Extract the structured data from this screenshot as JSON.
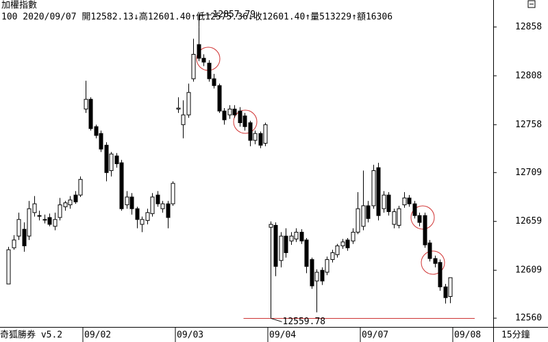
{
  "chart_data": {
    "type": "candlestick",
    "title": "加權指數",
    "info": "100 2020/09/07 開12582.13↓高12601.40↑低12575.36↓收12601.40↑量513229↑額16306",
    "footer": "奇狐勝券 v5.2",
    "period": "15分鐘",
    "ylim": [
      12551,
      12873
    ],
    "yticks": [
      12858,
      12808,
      12758,
      12709,
      12659,
      12609,
      12560
    ],
    "up_color": "#ffffff",
    "down_color": "#000000",
    "mark_color": "#cc3333",
    "categories": [
      null,
      null,
      null,
      null,
      null,
      null,
      null,
      null,
      null,
      null,
      null,
      null,
      null,
      null,
      null,
      "09/02",
      null,
      null,
      null,
      null,
      null,
      null,
      null,
      null,
      null,
      null,
      null,
      null,
      null,
      null,
      null,
      null,
      null,
      "09/03",
      null,
      null,
      null,
      null,
      null,
      null,
      null,
      null,
      null,
      null,
      null,
      null,
      null,
      null,
      null,
      null,
      null,
      "09/04",
      null,
      null,
      null,
      null,
      null,
      null,
      null,
      null,
      null,
      null,
      null,
      null,
      null,
      null,
      null,
      null,
      null,
      "09/07",
      null,
      null,
      null,
      null,
      null,
      null,
      null,
      null,
      null,
      null,
      null,
      null,
      null,
      null,
      null,
      null,
      null,
      "09/08"
    ],
    "open": [
      12595,
      12632,
      12644,
      12651,
      12644,
      12668,
      12665,
      12661,
      12663,
      12654,
      12663,
      12674,
      12676,
      12686,
      12686,
      12774,
      12784,
      12756,
      12749,
      12737,
      12711,
      12726,
      12719,
      12676,
      12684,
      12672,
      12656,
      12660,
      12667,
      12686,
      12672,
      12677,
      12677,
      12774,
      12758,
      12768,
      12805,
      12840,
      12826,
      12821,
      12805,
      12798,
      12772,
      12768,
      12774,
      12772,
      12767,
      12760,
      12742,
      12749,
      12739,
      12653,
      12655,
      12619,
      12644,
      12639,
      12641,
      12648,
      12640,
      12620,
      12598,
      12609,
      12607,
      12620,
      12625,
      12634,
      12640,
      12639,
      12648,
      12654,
      12675,
      12675,
      12714,
      12672,
      12686,
      12656,
      12655,
      12676,
      12683,
      12677,
      12665,
      12665,
      12637,
      12621,
      12617,
      12592,
      12582.13,
      null
    ],
    "high": [
      12633,
      12645,
      12668,
      12658,
      12680,
      12685,
      12670,
      12666,
      12667,
      12668,
      12683,
      12680,
      12685,
      12690,
      12705,
      12803,
      12786,
      12758,
      12752,
      12740,
      12730,
      12729,
      12722,
      12690,
      12688,
      12674,
      12664,
      12672,
      12688,
      12690,
      12680,
      12680,
      12700,
      12786,
      12783,
      12800,
      12846,
      12857.79,
      12830,
      12824,
      12810,
      12800,
      12775,
      12778,
      12778,
      12776,
      12770,
      12762,
      12752,
      12751,
      12760,
      12659,
      12658,
      12648,
      12652,
      12648,
      12652,
      12651,
      12642,
      12622,
      12610,
      12612,
      12623,
      12630,
      12636,
      12641,
      12642,
      12652,
      12689,
      12711,
      12680,
      12717,
      12719,
      12690,
      12689,
      12672,
      12675,
      12689,
      12686,
      12680,
      12668,
      12668,
      12640,
      12624,
      12620,
      12595,
      12601.4,
      null
    ],
    "low": [
      12595,
      12630,
      12640,
      12628,
      12640,
      12664,
      12660,
      12657,
      12654,
      12650,
      12660,
      12670,
      12672,
      12677,
      12684,
      12770,
      12752,
      12744,
      12730,
      12700,
      12705,
      12714,
      12670,
      12672,
      12666,
      12652,
      12648,
      12656,
      12664,
      12674,
      12668,
      12652,
      12675,
      12770,
      12744,
      12765,
      12802,
      12823,
      12818,
      12802,
      12795,
      12770,
      12758,
      12764,
      12765,
      12756,
      12752,
      12736,
      12738,
      12734,
      12736,
      12559.78,
      12603,
      12612,
      12622,
      12635,
      12638,
      12636,
      12606,
      12590,
      12566,
      12594,
      12604,
      12617,
      12622,
      12631,
      12629,
      12636,
      12646,
      12650,
      12658,
      12672,
      12660,
      12668,
      12665,
      12652,
      12652,
      12673,
      12674,
      12662,
      12654,
      12632,
      12618,
      12612,
      12588,
      12575,
      12575.36,
      null
    ],
    "close": [
      12630,
      12640,
      12661,
      12634,
      12672,
      12677,
      12665,
      12661,
      12656,
      12661,
      12676,
      12678,
      12681,
      12679,
      12702,
      12784,
      12754,
      12747,
      12733,
      12709,
      12728,
      12718,
      12672,
      12684,
      12672,
      12661,
      12661,
      12668,
      12684,
      12677,
      12677,
      12663,
      12698,
      12775,
      12768,
      12791,
      12830,
      12826,
      12822,
      12805,
      12798,
      12772,
      12763,
      12774,
      12768,
      12760,
      12756,
      12742,
      12749,
      12737,
      12758,
      12656,
      12613,
      12644,
      12627,
      12644,
      12648,
      12639,
      12613,
      12593,
      12607,
      12598,
      12620,
      12627,
      12634,
      12638,
      12632,
      12648,
      12672,
      12675,
      12662,
      12711,
      12665,
      12686,
      12669,
      12669,
      12672,
      12683,
      12677,
      12665,
      12658,
      12635,
      12621,
      12616,
      12592,
      12581,
      12601.4,
      null
    ]
  }
}
